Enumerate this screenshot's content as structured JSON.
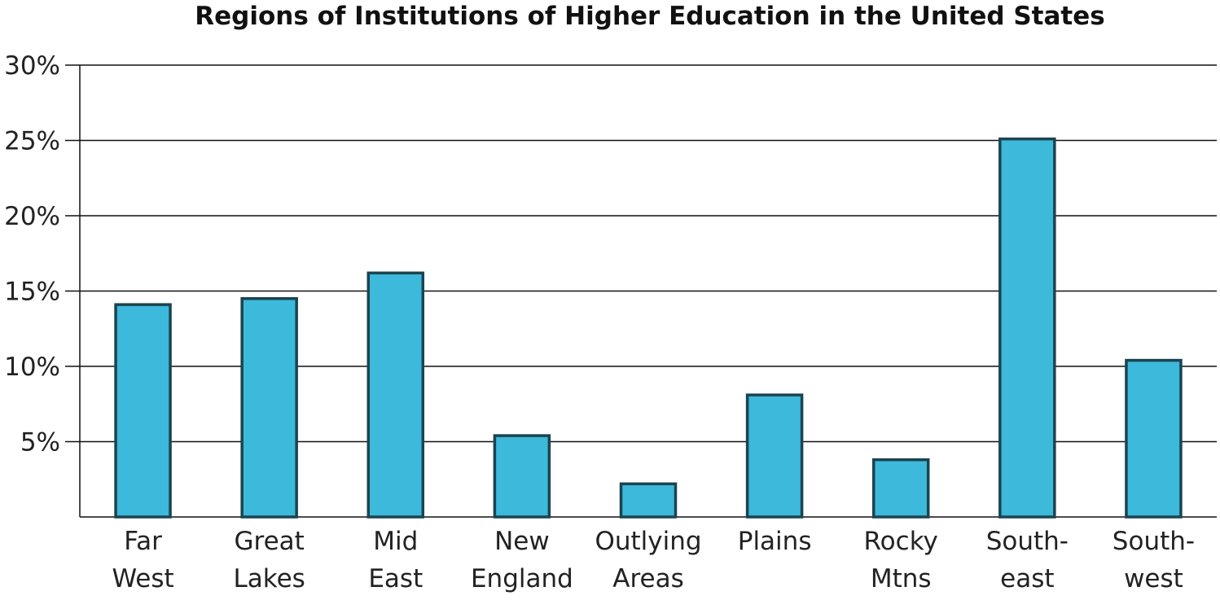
{
  "chart_data": {
    "type": "bar",
    "title": "Regions of Institutions of Higher Education in the United States",
    "xlabel": "",
    "ylabel": "",
    "categories": [
      [
        "Far",
        "West"
      ],
      [
        "Great",
        "Lakes"
      ],
      [
        "Mid",
        "East"
      ],
      [
        "New",
        "England"
      ],
      [
        "Outlying",
        "Areas"
      ],
      [
        "Plains"
      ],
      [
        "Rocky",
        "Mtns"
      ],
      [
        "South-",
        "east"
      ],
      [
        "South-",
        "west"
      ]
    ],
    "values": [
      14.1,
      14.5,
      16.2,
      5.4,
      2.2,
      8.1,
      3.8,
      25.1,
      10.4
    ],
    "ylim": [
      0,
      30
    ],
    "yticks": [
      {
        "value": 5,
        "label": "5%"
      },
      {
        "value": 10,
        "label": "10%"
      },
      {
        "value": 15,
        "label": "15%"
      },
      {
        "value": 20,
        "label": "20%"
      },
      {
        "value": 25,
        "label": "25%"
      },
      {
        "value": 30,
        "label": "30%"
      }
    ],
    "grid": true,
    "bar_color": "#3cb9db",
    "bar_outline": "#1b4450"
  }
}
